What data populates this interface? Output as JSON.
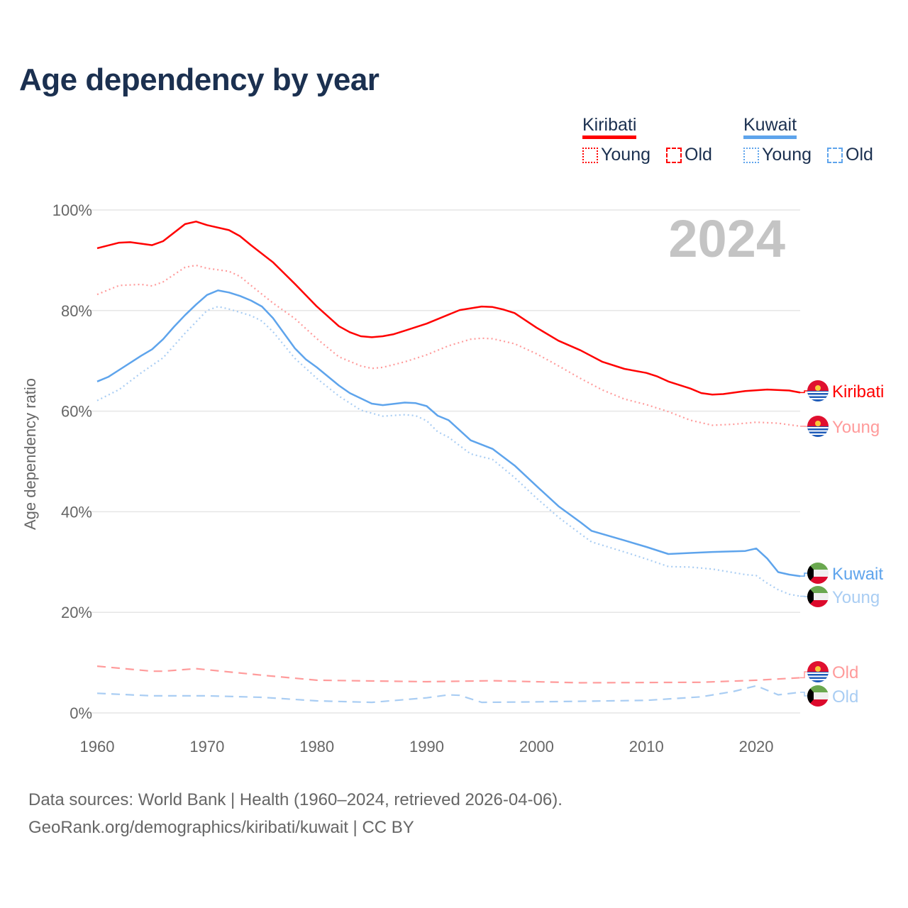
{
  "title": "Age dependency by year",
  "legend": {
    "groups": [
      {
        "name": "Kiribati",
        "color": "#ff0000",
        "items": [
          "Young",
          "Old"
        ]
      },
      {
        "name": "Kuwait",
        "color": "#5ea4ec",
        "items": [
          "Young",
          "Old"
        ]
      }
    ]
  },
  "year_watermark": "2024",
  "footer": {
    "line1": "Data sources: World Bank | Health (1960–2024, retrieved 2026-04-06).",
    "line2": "GeoRank.org/demographics/kiribati/kuwait | CC BY"
  },
  "chart_data": {
    "type": "line",
    "title": "Age dependency by year",
    "xlabel": "",
    "ylabel": "Age dependency ratio",
    "xlim": [
      1960,
      2024
    ],
    "ylim": [
      0,
      100
    ],
    "x_ticks": [
      "1960",
      "1970",
      "1980",
      "1990",
      "2000",
      "2010",
      "2020"
    ],
    "y_ticks": [
      "0%",
      "20%",
      "40%",
      "60%",
      "80%",
      "100%"
    ],
    "grid": true,
    "legend_position": "top-right",
    "series": [
      {
        "name": "Kiribati",
        "label": "Kiribati",
        "color": "#ff0000",
        "dash": "solid",
        "points": [
          [
            1960,
            92.4
          ],
          [
            1962,
            93.5
          ],
          [
            1963,
            93.6
          ],
          [
            1965,
            93
          ],
          [
            1966,
            93.8
          ],
          [
            1968,
            97.2
          ],
          [
            1969,
            97.7
          ],
          [
            1970,
            97
          ],
          [
            1972,
            96
          ],
          [
            1973,
            94.8
          ],
          [
            1974,
            93
          ],
          [
            1976,
            89.6
          ],
          [
            1978,
            85.3
          ],
          [
            1980,
            80.8
          ],
          [
            1982,
            76.9
          ],
          [
            1983,
            75.7
          ],
          [
            1984,
            74.9
          ],
          [
            1985,
            74.7
          ],
          [
            1986,
            74.9
          ],
          [
            1987,
            75.3
          ],
          [
            1988,
            76
          ],
          [
            1990,
            77.4
          ],
          [
            1993,
            80.1
          ],
          [
            1995,
            80.8
          ],
          [
            1996,
            80.7
          ],
          [
            1997,
            80.2
          ],
          [
            1998,
            79.5
          ],
          [
            2000,
            76.6
          ],
          [
            2002,
            74
          ],
          [
            2004,
            72.1
          ],
          [
            2006,
            69.8
          ],
          [
            2008,
            68.4
          ],
          [
            2010,
            67.6
          ],
          [
            2011,
            66.9
          ],
          [
            2012,
            65.9
          ],
          [
            2014,
            64.5
          ],
          [
            2015,
            63.6
          ],
          [
            2016,
            63.3
          ],
          [
            2017,
            63.4
          ],
          [
            2019,
            64
          ],
          [
            2021,
            64.3
          ],
          [
            2023,
            64.1
          ],
          [
            2024,
            63.7
          ]
        ]
      },
      {
        "name": "Kiribati Young",
        "label": "Young",
        "color": "#ff9b9b",
        "dash": "dotted",
        "points": [
          [
            1960,
            83.2
          ],
          [
            1962,
            85
          ],
          [
            1964,
            85.2
          ],
          [
            1965,
            84.9
          ],
          [
            1966,
            85.7
          ],
          [
            1968,
            88.6
          ],
          [
            1969,
            89
          ],
          [
            1970,
            88.4
          ],
          [
            1972,
            87.8
          ],
          [
            1973,
            86.8
          ],
          [
            1974,
            85
          ],
          [
            1976,
            81.5
          ],
          [
            1978,
            78.4
          ],
          [
            1980,
            74.4
          ],
          [
            1982,
            70.8
          ],
          [
            1984,
            69
          ],
          [
            1985,
            68.5
          ],
          [
            1986,
            68.7
          ],
          [
            1988,
            69.8
          ],
          [
            1990,
            71.2
          ],
          [
            1992,
            73
          ],
          [
            1994,
            74.3
          ],
          [
            1995,
            74.5
          ],
          [
            1996,
            74.4
          ],
          [
            1998,
            73.4
          ],
          [
            2000,
            71.4
          ],
          [
            2002,
            69
          ],
          [
            2004,
            66.5
          ],
          [
            2006,
            64.2
          ],
          [
            2008,
            62.4
          ],
          [
            2010,
            61.3
          ],
          [
            2012,
            59.9
          ],
          [
            2014,
            58.2
          ],
          [
            2016,
            57.2
          ],
          [
            2018,
            57.4
          ],
          [
            2020,
            57.8
          ],
          [
            2022,
            57.6
          ],
          [
            2024,
            57
          ]
        ]
      },
      {
        "name": "Kiribati Old",
        "label": "Old",
        "color": "#ff9b9b",
        "dash": "dashed",
        "points": [
          [
            1960,
            9.3
          ],
          [
            1965,
            8.3
          ],
          [
            1966,
            8.3
          ],
          [
            1969,
            8.8
          ],
          [
            1975,
            7.5
          ],
          [
            1980,
            6.5
          ],
          [
            1990,
            6.2
          ],
          [
            1996,
            6.4
          ],
          [
            2004,
            6.0
          ],
          [
            2015,
            6.1
          ],
          [
            2020,
            6.5
          ],
          [
            2024,
            7.0
          ]
        ]
      },
      {
        "name": "Kuwait",
        "label": "Kuwait",
        "color": "#5ea4ec",
        "dash": "solid",
        "points": [
          [
            1960,
            65.9
          ],
          [
            1961,
            66.8
          ],
          [
            1962,
            68.2
          ],
          [
            1964,
            71
          ],
          [
            1965,
            72.3
          ],
          [
            1966,
            74.3
          ],
          [
            1967,
            76.8
          ],
          [
            1968,
            79.1
          ],
          [
            1969,
            81.2
          ],
          [
            1970,
            83.1
          ],
          [
            1971,
            84
          ],
          [
            1972,
            83.6
          ],
          [
            1973,
            82.9
          ],
          [
            1974,
            82
          ],
          [
            1975,
            80.8
          ],
          [
            1976,
            78.5
          ],
          [
            1978,
            72.5
          ],
          [
            1979,
            70.3
          ],
          [
            1980,
            68.7
          ],
          [
            1982,
            65.1
          ],
          [
            1983,
            63.6
          ],
          [
            1985,
            61.5
          ],
          [
            1986,
            61.2
          ],
          [
            1988,
            61.7
          ],
          [
            1989,
            61.6
          ],
          [
            1990,
            61
          ],
          [
            1991,
            59.1
          ],
          [
            1992,
            58.2
          ],
          [
            1994,
            54.2
          ],
          [
            1996,
            52.5
          ],
          [
            1998,
            49.2
          ],
          [
            2000,
            45.1
          ],
          [
            2002,
            41.1
          ],
          [
            2004,
            37.9
          ],
          [
            2005,
            36.2
          ],
          [
            2008,
            34.3
          ],
          [
            2010,
            33
          ],
          [
            2012,
            31.6
          ],
          [
            2014,
            31.8
          ],
          [
            2016,
            32
          ],
          [
            2019,
            32.2
          ],
          [
            2020,
            32.7
          ],
          [
            2021,
            30.7
          ],
          [
            2022,
            28
          ],
          [
            2023,
            27.5
          ],
          [
            2024,
            27.2
          ]
        ]
      },
      {
        "name": "Kuwait Young",
        "label": "Young",
        "color": "#a9cdf3",
        "dash": "dotted",
        "points": [
          [
            1960,
            62.1
          ],
          [
            1962,
            64.3
          ],
          [
            1964,
            67.6
          ],
          [
            1966,
            70.6
          ],
          [
            1968,
            75.5
          ],
          [
            1970,
            80
          ],
          [
            1971,
            80.8
          ],
          [
            1972,
            80.3
          ],
          [
            1974,
            79
          ],
          [
            1975,
            77.9
          ],
          [
            1976,
            75.8
          ],
          [
            1978,
            70.5
          ],
          [
            1980,
            66.5
          ],
          [
            1982,
            63
          ],
          [
            1984,
            60.2
          ],
          [
            1986,
            59
          ],
          [
            1988,
            59.3
          ],
          [
            1989,
            59.1
          ],
          [
            1990,
            58.1
          ],
          [
            1991,
            55.9
          ],
          [
            1992,
            54.8
          ],
          [
            1994,
            51.5
          ],
          [
            1996,
            50.4
          ],
          [
            1998,
            46.8
          ],
          [
            2000,
            42.7
          ],
          [
            2002,
            38.9
          ],
          [
            2004,
            35.6
          ],
          [
            2005,
            34
          ],
          [
            2008,
            32
          ],
          [
            2010,
            30.6
          ],
          [
            2012,
            29.1
          ],
          [
            2014,
            29
          ],
          [
            2016,
            28.6
          ],
          [
            2019,
            27.5
          ],
          [
            2020,
            27.3
          ],
          [
            2021,
            25.8
          ],
          [
            2022,
            24.5
          ],
          [
            2023,
            23.6
          ],
          [
            2024,
            23.2
          ]
        ]
      },
      {
        "name": "Kuwait Old",
        "label": "Old",
        "color": "#a9cdf3",
        "dash": "dashed",
        "points": [
          [
            1960,
            3.9
          ],
          [
            1965,
            3.4
          ],
          [
            1970,
            3.4
          ],
          [
            1975,
            3.1
          ],
          [
            1980,
            2.4
          ],
          [
            1985,
            2.1
          ],
          [
            1990,
            3
          ],
          [
            1992,
            3.6
          ],
          [
            1993,
            3.5
          ],
          [
            1995,
            2.1
          ],
          [
            2000,
            2.2
          ],
          [
            2010,
            2.5
          ],
          [
            2015,
            3.2
          ],
          [
            2018,
            4.3
          ],
          [
            2020,
            5.4
          ],
          [
            2022,
            3.6
          ],
          [
            2024,
            4.1
          ]
        ]
      }
    ]
  }
}
